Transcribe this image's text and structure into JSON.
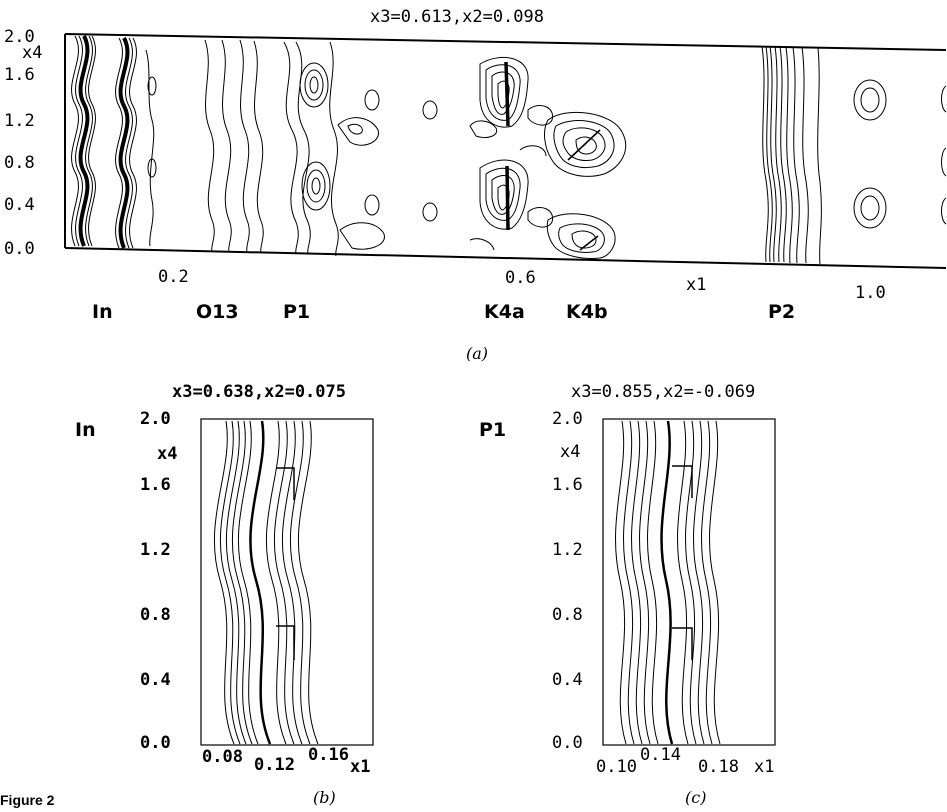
{
  "figure_label": "Figure 2",
  "panels": {
    "a": {
      "caption": "(a)",
      "header": "x3=0.613,x2=0.098",
      "y_axis_label": "x4",
      "x_axis_label": "x1",
      "y_ticks": [
        "2.0",
        "1.6",
        "1.2",
        "0.8",
        "0.4",
        "0.0"
      ],
      "x_ticks": [
        "0.2",
        "0.6",
        "1.0"
      ],
      "atoms": [
        "In",
        "O13",
        "P1",
        "K4a",
        "K4b",
        "P2"
      ]
    },
    "b": {
      "caption": "(b)",
      "header": "x3=0.638,x2=0.075",
      "atom": "In",
      "y_axis_label": "x4",
      "x_axis_label": "x1",
      "y_ticks": [
        "2.0",
        "1.6",
        "1.2",
        "0.8",
        "0.4",
        "0.0"
      ],
      "x_ticks": [
        "0.08",
        "0.12",
        "0.16"
      ]
    },
    "c": {
      "caption": "(c)",
      "header": "x3=0.855,x2=-0.069",
      "atom": "P1",
      "y_axis_label": "x4",
      "x_axis_label": "x1",
      "y_ticks": [
        "2.0",
        "1.6",
        "1.2",
        "0.8",
        "0.4",
        "0.0"
      ],
      "x_ticks": [
        "0.10",
        "0.14",
        "0.18"
      ]
    }
  }
}
